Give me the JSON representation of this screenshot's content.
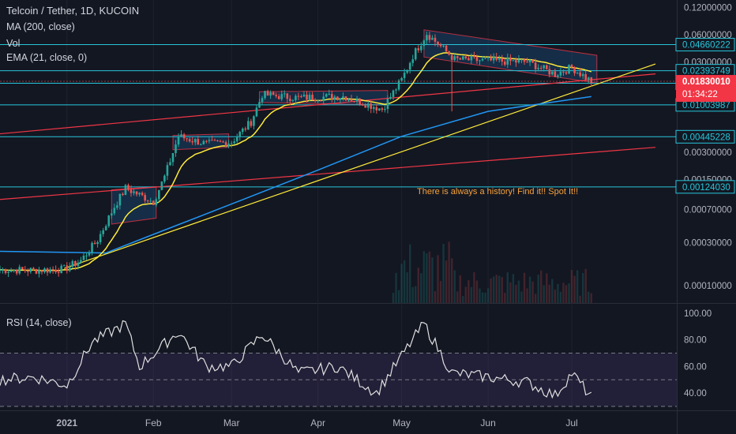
{
  "legend": {
    "title": "Telcoin / Tether, 1D, KUCOIN",
    "ma": "MA (200, close)",
    "vol": "Vol",
    "ema": "EMA (21, close, 0)",
    "rsi": "RSI (14, close)"
  },
  "annotation": "There is always a history! Find it!! Spot It!!",
  "colors": {
    "background": "#131722",
    "level_line": "#26c6da",
    "trend_red": "#f23645",
    "ema_yellow": "#ffeb3b",
    "ma_blue": "#2962ff",
    "candle_up": "#26a69a",
    "candle_down": "#ef5350",
    "rsi_band": "#7e57c2"
  },
  "chart_data": [
    {
      "type": "candlestick",
      "title": "Telcoin / Tether, 1D, KUCOIN",
      "y_scale": "log",
      "ylim": [
        7e-05,
        0.15
      ],
      "price_ticks": [
        "0.12000000",
        "0.06000000",
        "0.03000000",
        "0.00300000",
        "0.00150000",
        "0.00070000",
        "0.00030000",
        "0.00010000"
      ],
      "level_badges": [
        {
          "label": "0.04660222",
          "value": 0.04660222
        },
        {
          "label": "0.02393749",
          "value": 0.02393749
        },
        {
          "label": "0.01739694",
          "value": 0.01739694
        },
        {
          "label": "0.01003987",
          "value": 0.01003987
        },
        {
          "label": "0.00445228",
          "value": 0.00445228
        },
        {
          "label": "0.00124030",
          "value": 0.0012403
        }
      ],
      "last_price": {
        "label": "0.01830010",
        "value": 0.0183001,
        "countdown": "01:34:22"
      },
      "x_labels": [
        "2021",
        "Feb",
        "Mar",
        "Apr",
        "May",
        "Jun",
        "Jul"
      ],
      "price_path": [
        [
          "2020-12-08",
          0.00015
        ],
        [
          "2020-12-20",
          0.000148
        ],
        [
          "2020-12-31",
          0.000152
        ],
        [
          "2021-01-06",
          0.00019
        ],
        [
          "2021-01-12",
          0.00032
        ],
        [
          "2021-01-18",
          0.00075
        ],
        [
          "2021-01-22",
          0.0012
        ],
        [
          "2021-02-01",
          0.00085
        ],
        [
          "2021-02-05",
          0.0016
        ],
        [
          "2021-02-10",
          0.0045
        ],
        [
          "2021-02-20",
          0.0037
        ],
        [
          "2021-03-01",
          0.0039
        ],
        [
          "2021-03-08",
          0.0065
        ],
        [
          "2021-03-12",
          0.013
        ],
        [
          "2021-03-25",
          0.012
        ],
        [
          "2021-04-10",
          0.0125
        ],
        [
          "2021-04-24",
          0.009
        ],
        [
          "2021-05-01",
          0.019
        ],
        [
          "2021-05-05",
          0.035
        ],
        [
          "2021-05-10",
          0.062
        ],
        [
          "2021-05-20",
          0.032
        ],
        [
          "2021-06-01",
          0.031
        ],
        [
          "2021-06-15",
          0.03
        ],
        [
          "2021-06-25",
          0.022
        ],
        [
          "2021-07-01",
          0.026
        ],
        [
          "2021-07-08",
          0.0183
        ]
      ],
      "rsi": {
        "name": "RSI (14, close)",
        "ticks": [
          "100.00",
          "80.00",
          "60.00",
          "40.00"
        ],
        "overbought": 70,
        "oversold": 30,
        "midline": 50,
        "values": [
          [
            "2020-12-08",
            50
          ],
          [
            "2020-12-20",
            52
          ],
          [
            "2021-01-01",
            46
          ],
          [
            "2021-01-10",
            78
          ],
          [
            "2021-01-22",
            92
          ],
          [
            "2021-01-27",
            60
          ],
          [
            "2021-02-10",
            86
          ],
          [
            "2021-02-20",
            60
          ],
          [
            "2021-03-01",
            60
          ],
          [
            "2021-03-12",
            84
          ],
          [
            "2021-03-25",
            55
          ],
          [
            "2021-04-08",
            60
          ],
          [
            "2021-04-22",
            40
          ],
          [
            "2021-05-05",
            80
          ],
          [
            "2021-05-09",
            92
          ],
          [
            "2021-05-19",
            55
          ],
          [
            "2021-06-01",
            52
          ],
          [
            "2021-06-15",
            48
          ],
          [
            "2021-06-25",
            38
          ],
          [
            "2021-07-01",
            55
          ],
          [
            "2021-07-08",
            37
          ]
        ]
      }
    }
  ]
}
